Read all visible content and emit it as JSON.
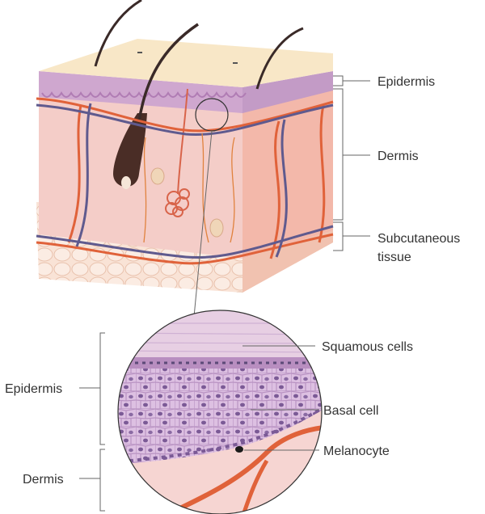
{
  "diagram": {
    "colors": {
      "epidermis_top": "#f7e6c4",
      "epidermis_purple": "#c9a6cf",
      "dermis": "#f4c9c5",
      "artery": "#e0623a",
      "vein": "#5f5a8e",
      "fat": "#f7ddd0",
      "hair": "#3a2a28"
    },
    "block_labels": {
      "epidermis": "Epidermis",
      "dermis": "Dermis",
      "subcutaneous_line1": "Subcutaneous",
      "subcutaneous_line2": "tissue"
    },
    "detail_labels": {
      "squamous": "Squamous cells",
      "basal": "Basal cell",
      "melanocyte": "Melanocyte",
      "epidermis": "Epidermis",
      "dermis": "Dermis"
    }
  }
}
